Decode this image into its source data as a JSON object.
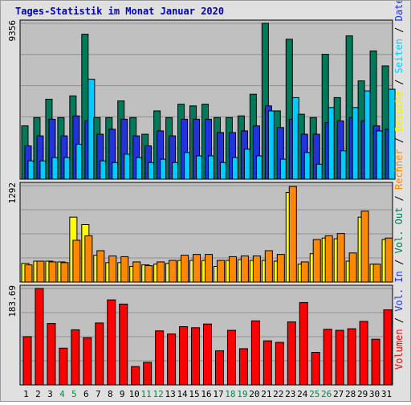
{
  "chart_data": {
    "type": "bar",
    "title": "Tages-Statistik im Monat Januar 2020",
    "days": [
      "1",
      "2",
      "3",
      "4",
      "5",
      "6",
      "7",
      "8",
      "9",
      "10",
      "11",
      "12",
      "13",
      "14",
      "15",
      "16",
      "17",
      "18",
      "19",
      "20",
      "21",
      "22",
      "23",
      "24",
      "25",
      "26",
      "27",
      "28",
      "29",
      "30",
      "31"
    ],
    "weekend_days": [
      "4",
      "5",
      "11",
      "12",
      "18",
      "19",
      "25",
      "26"
    ],
    "panels": [
      {
        "max_label": "9356",
        "ylim": [
          0,
          9356
        ],
        "series": [
          {
            "name": "Anfragen",
            "color": "#007a5a",
            "values": [
              3200,
              3700,
              4800,
              3700,
              5000,
              8700,
              3700,
              3700,
              4700,
              3700,
              2700,
              4100,
              3700,
              4500,
              4400,
              4500,
              3700,
              3700,
              3800,
              5100,
              9356,
              4100,
              8400,
              3900,
              3700,
              7500,
              4900,
              8600,
              5900,
              7700,
              6800
            ]
          },
          {
            "name": "Dateien",
            "color": "#2233dd",
            "values": [
              2000,
              2600,
              3600,
              2600,
              3800,
              3500,
              2700,
              3000,
              3600,
              2600,
              2000,
              2900,
              2600,
              3600,
              3600,
              3600,
              2800,
              2800,
              2900,
              3200,
              4400,
              3100,
              3600,
              2700,
              2700,
              3400,
              3500,
              3700,
              3500,
              3200,
              3000
            ]
          },
          {
            "name": "Seiten",
            "color": "#00ccff",
            "values": [
              1100,
              1100,
              1300,
              1300,
              2100,
              6000,
              1100,
              1000,
              1500,
              1300,
              1000,
              1200,
              1000,
              1600,
              1400,
              1400,
              1000,
              1300,
              1800,
              1400,
              4100,
              1200,
              4900,
              1600,
              900,
              4300,
              1700,
              4300,
              5300,
              2900,
              5400
            ]
          }
        ]
      },
      {
        "max_label": "1292",
        "ylim": [
          0,
          1292
        ],
        "series": [
          {
            "name": "Besuche",
            "color": "#ffff00",
            "values": [
              250,
              280,
              280,
              270,
              870,
              770,
              360,
              260,
              260,
              210,
              230,
              240,
              250,
              290,
              290,
              290,
              210,
              290,
              300,
              290,
              290,
              280,
              1200,
              240,
              380,
              590,
              580,
              280,
              870,
              240,
              570
            ]
          },
          {
            "name": "Rechner",
            "color": "#ff8800",
            "values": [
              230,
              280,
              270,
              260,
              560,
              620,
              420,
              350,
              340,
              270,
              220,
              270,
              290,
              360,
              370,
              370,
              290,
              340,
              350,
              350,
              420,
              370,
              1280,
              270,
              570,
              620,
              650,
              390,
              950,
              240,
              590
            ]
          }
        ]
      },
      {
        "max_label": "183.69",
        "ylim": [
          0,
          183.69
        ],
        "series": [
          {
            "name": "Volumen",
            "color": "#ff0000",
            "values": [
              92,
              183.69,
              117,
              70,
              105,
              90,
              118,
              162,
              154,
              35,
              43,
              103,
              97,
              111,
              109,
              116,
              65,
              104,
              69,
              122,
              84,
              81,
              120,
              157,
              62,
              106,
              104,
              107,
              121,
              87,
              143
            ]
          }
        ]
      }
    ],
    "right_labels": [
      {
        "text": "Volumen",
        "color": "#ff0000"
      },
      {
        "text": " / ",
        "color": "#000000"
      },
      {
        "text": "Vol. In",
        "color": "#2233dd"
      },
      {
        "text": " / ",
        "color": "#000000"
      },
      {
        "text": "Vol. Out",
        "color": "#007a5a"
      },
      {
        "text": " / ",
        "color": "#000000"
      },
      {
        "text": "Rechner",
        "color": "#ff8800"
      },
      {
        "text": " / ",
        "color": "#000000"
      },
      {
        "text": "Besuche",
        "color": "#eeee00"
      },
      {
        "text": " / ",
        "color": "#000000"
      },
      {
        "text": "Seiten",
        "color": "#00ccff"
      },
      {
        "text": " / ",
        "color": "#000000"
      },
      {
        "text": "Dateien",
        "color": "#2233dd"
      },
      {
        "text": " / ",
        "color": "#000000"
      },
      {
        "text": "Anfragen",
        "color": "#007a5a"
      }
    ],
    "colors": {
      "plot_bg": "#c0c0c0",
      "frame_bg": "#e0e0e0",
      "grid": "#909090",
      "title": "#0000cc",
      "weekday_label": "#000000",
      "weekend_label": "#008844"
    },
    "grid": true
  }
}
